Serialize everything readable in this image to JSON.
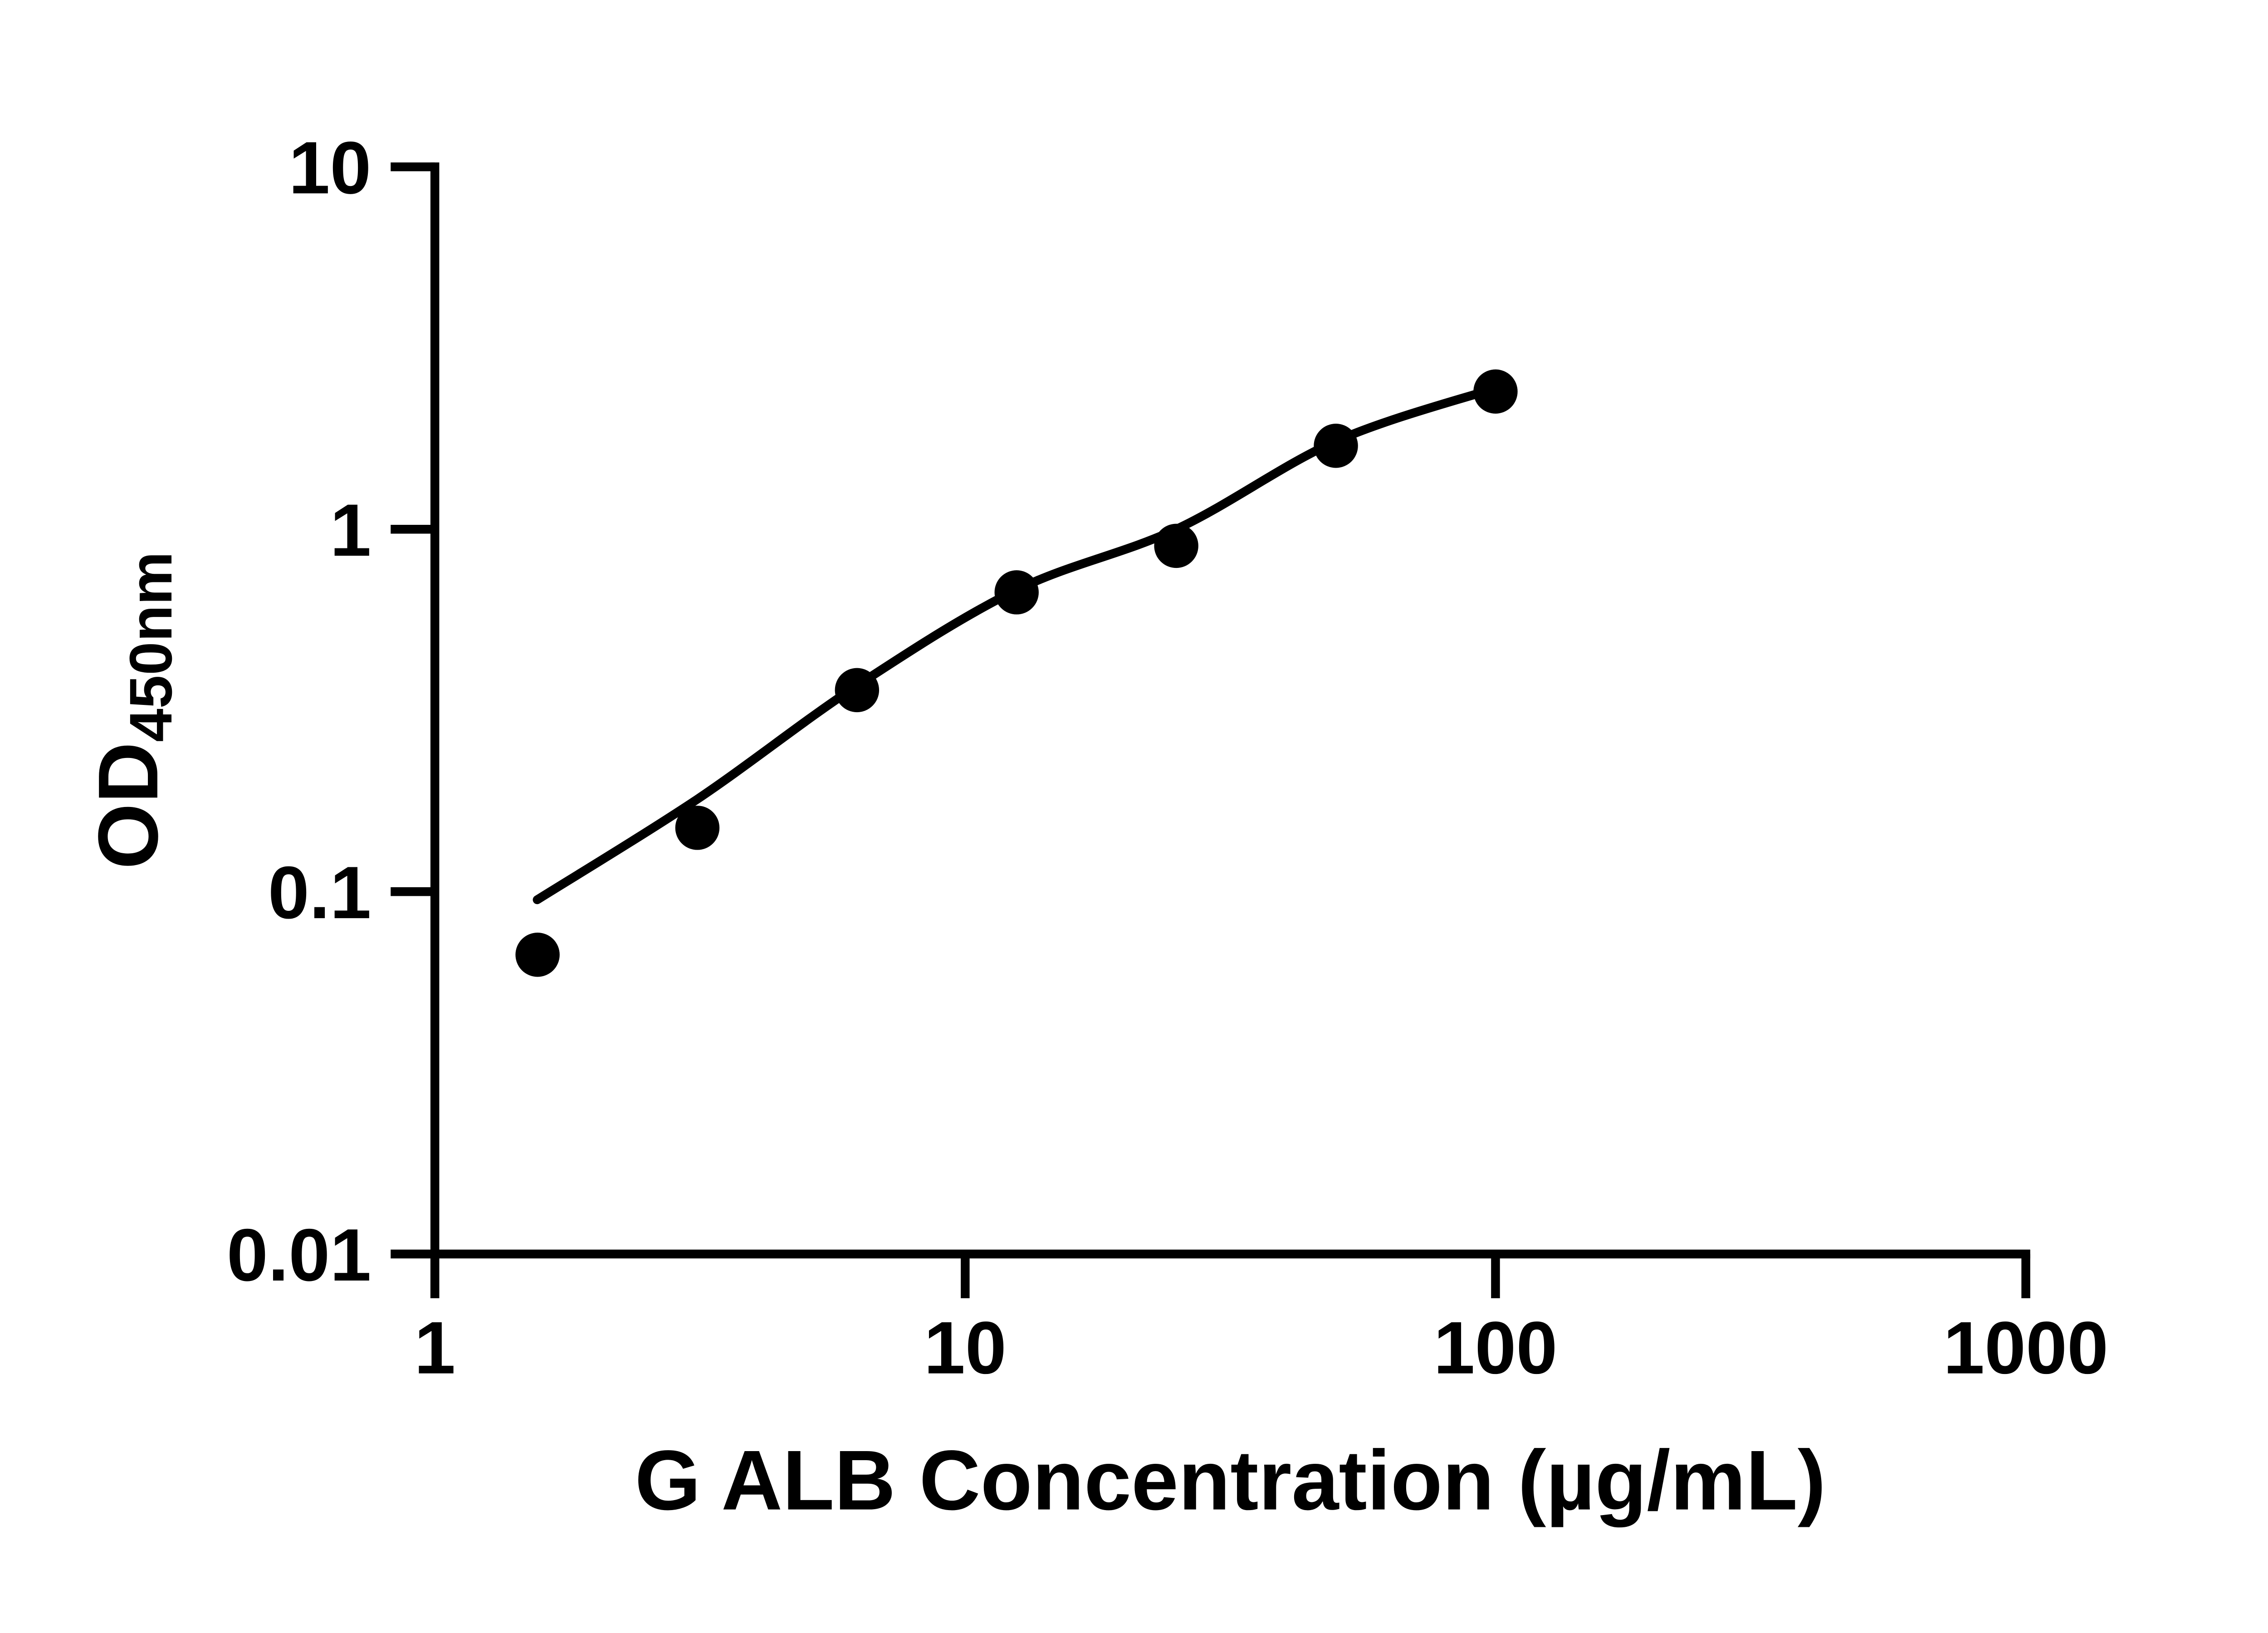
{
  "page": {
    "background_color": "#ffffff",
    "foreground_color": "#000000"
  },
  "chart_data": {
    "type": "scatter",
    "subtype": "log-log standard curve with fitted line",
    "title": "",
    "xlabel": "G ALB Concentration (µg/mL)",
    "ylabel_main": "OD",
    "ylabel_sub": "450nm",
    "x_scale": "log10",
    "y_scale": "log10",
    "xlim": [
      1,
      1000
    ],
    "ylim": [
      0.01,
      10
    ],
    "grid": false,
    "legend": false,
    "x_ticks": {
      "values": [
        1,
        10,
        100,
        1000
      ],
      "labels": [
        "1",
        "10",
        "100",
        "1000"
      ]
    },
    "y_ticks": {
      "values": [
        10,
        1,
        0.1,
        0.01
      ],
      "labels": [
        "10",
        "1",
        "0.1",
        "0.01"
      ]
    },
    "series": [
      {
        "name": "standards",
        "marker": "filled-circle",
        "color": "#000000",
        "x": [
          1.5625,
          3.125,
          6.25,
          12.5,
          25,
          50,
          100
        ],
        "y": [
          0.067,
          0.15,
          0.36,
          0.67,
          0.9,
          1.7,
          2.4
        ]
      }
    ],
    "fit_curve": {
      "name": "fitted-curve",
      "color": "#000000",
      "points": [
        [
          1.56,
          0.095
        ],
        [
          3.125,
          0.18
        ],
        [
          6.25,
          0.37
        ],
        [
          12.5,
          0.68
        ],
        [
          25,
          1.0
        ],
        [
          50,
          1.75
        ],
        [
          100,
          2.45
        ]
      ]
    }
  }
}
